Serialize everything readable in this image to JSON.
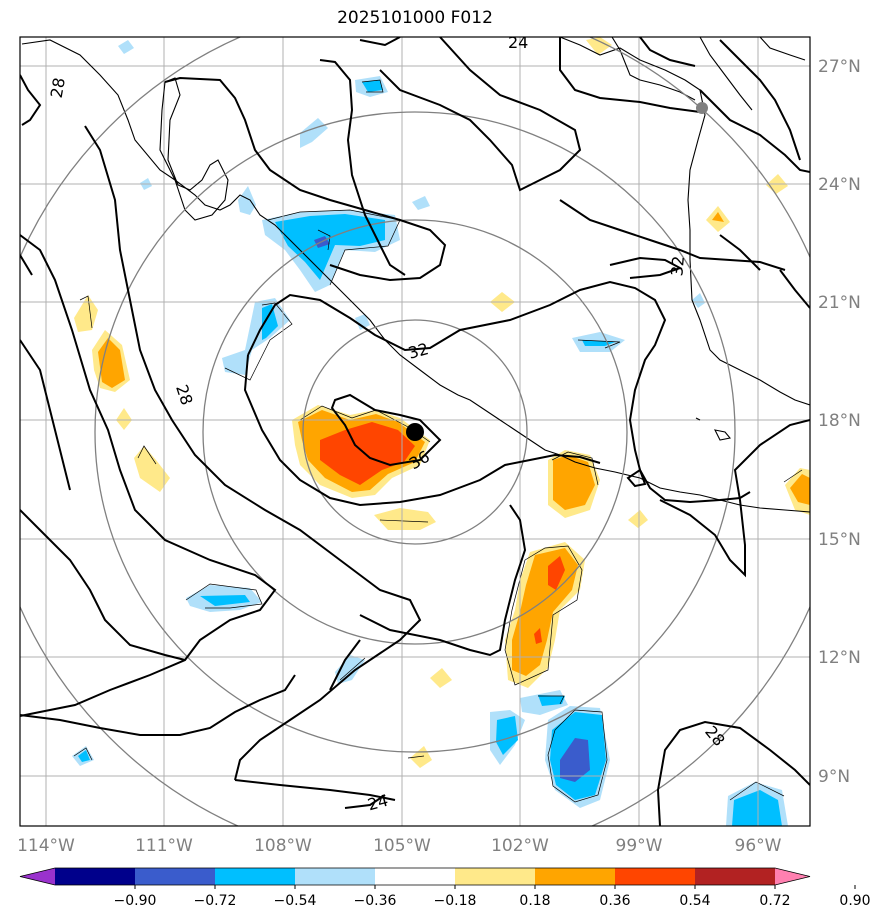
{
  "title": "2025101000 F012",
  "lon_labels": [
    "114°W",
    "111°W",
    "108°W",
    "105°W",
    "102°W",
    "99°W",
    "96°W"
  ],
  "lat_labels": [
    "27°N",
    "24°N",
    "21°N",
    "18°N",
    "15°N",
    "12°N",
    "9°N"
  ],
  "colorbar": {
    "ticks": [
      "−0.90",
      "−0.72",
      "−0.54",
      "−0.36",
      "−0.18",
      "0.18",
      "0.36",
      "0.54",
      "0.72",
      "0.90"
    ],
    "colors": [
      "#9a32cd",
      "#00008b",
      "#3a5ccc",
      "#00bfff",
      "#b0e0fa",
      "#ffffff",
      "#ffe98a",
      "#ffa500",
      "#ff4500",
      "#b22222",
      "#ff80b0"
    ]
  },
  "contour_labels": [
    "24",
    "28",
    "32",
    "32",
    "36",
    "28",
    "24",
    "28"
  ],
  "storm_center_marker": "black-dot",
  "city_marker": "grey-dot"
}
